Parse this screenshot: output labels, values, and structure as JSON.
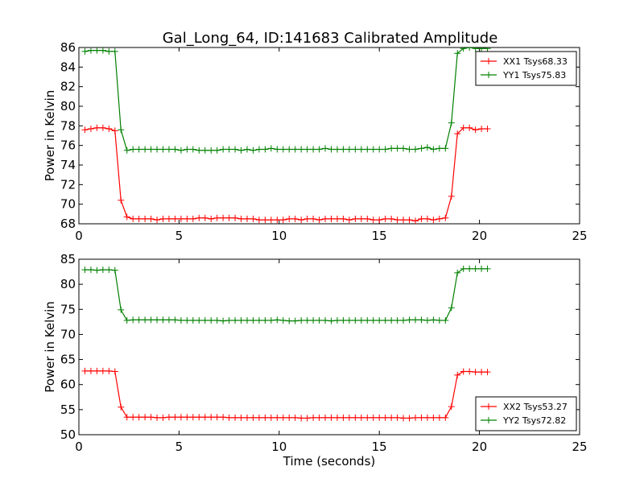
{
  "title": "Gal_Long_64, ID:141683 Calibrated Amplitude",
  "chart_data": [
    {
      "type": "line",
      "xlabel": "",
      "ylabel": "Power in Kelvin",
      "xlim": [
        0,
        25
      ],
      "ylim": [
        68,
        86
      ],
      "xticks": [
        "0",
        "5",
        "10",
        "15",
        "20",
        "25"
      ],
      "yticks": [
        "68",
        "70",
        "72",
        "74",
        "76",
        "78",
        "80",
        "82",
        "84",
        "86"
      ],
      "legend_position": "top-right",
      "series": [
        {
          "name": "XX1 Tsys68.33",
          "color": "#ff0000",
          "x": [
            0.3,
            0.6,
            0.9,
            1.2,
            1.5,
            1.8,
            2.1,
            2.4,
            2.7,
            3.0,
            3.3,
            3.6,
            3.9,
            4.2,
            4.5,
            4.8,
            5.1,
            5.4,
            5.7,
            6.0,
            6.3,
            6.6,
            6.9,
            7.2,
            7.5,
            7.8,
            8.1,
            8.4,
            8.7,
            9.0,
            9.3,
            9.6,
            9.9,
            10.2,
            10.5,
            10.8,
            11.1,
            11.4,
            11.7,
            12.0,
            12.3,
            12.6,
            12.9,
            13.2,
            13.5,
            13.8,
            14.1,
            14.4,
            14.7,
            15.0,
            15.3,
            15.6,
            15.9,
            16.2,
            16.5,
            16.8,
            17.1,
            17.4,
            17.7,
            18.0,
            18.3,
            18.6,
            18.9,
            19.2,
            19.5,
            19.8,
            20.1,
            20.4
          ],
          "y": [
            77.6,
            77.7,
            77.8,
            77.8,
            77.7,
            77.5,
            70.4,
            68.7,
            68.5,
            68.5,
            68.5,
            68.5,
            68.4,
            68.5,
            68.5,
            68.5,
            68.5,
            68.5,
            68.5,
            68.6,
            68.6,
            68.5,
            68.6,
            68.6,
            68.6,
            68.6,
            68.5,
            68.5,
            68.5,
            68.4,
            68.4,
            68.4,
            68.4,
            68.4,
            68.5,
            68.5,
            68.4,
            68.5,
            68.5,
            68.4,
            68.5,
            68.5,
            68.5,
            68.5,
            68.4,
            68.5,
            68.5,
            68.5,
            68.4,
            68.4,
            68.5,
            68.5,
            68.4,
            68.4,
            68.4,
            68.3,
            68.5,
            68.5,
            68.4,
            68.5,
            68.6,
            70.8,
            77.2,
            77.8,
            77.8,
            77.6,
            77.7,
            77.7
          ]
        },
        {
          "name": "YY1 Tsys75.83",
          "color": "#008000",
          "x": [
            0.3,
            0.6,
            0.9,
            1.2,
            1.5,
            1.8,
            2.1,
            2.4,
            2.7,
            3.0,
            3.3,
            3.6,
            3.9,
            4.2,
            4.5,
            4.8,
            5.1,
            5.4,
            5.7,
            6.0,
            6.3,
            6.6,
            6.9,
            7.2,
            7.5,
            7.8,
            8.1,
            8.4,
            8.7,
            9.0,
            9.3,
            9.6,
            9.9,
            10.2,
            10.5,
            10.8,
            11.1,
            11.4,
            11.7,
            12.0,
            12.3,
            12.6,
            12.9,
            13.2,
            13.5,
            13.8,
            14.1,
            14.4,
            14.7,
            15.0,
            15.3,
            15.6,
            15.9,
            16.2,
            16.5,
            16.8,
            17.1,
            17.4,
            17.7,
            18.0,
            18.3,
            18.6,
            18.9,
            19.2,
            19.5,
            19.8,
            20.1,
            20.4
          ],
          "y": [
            85.6,
            85.7,
            85.7,
            85.7,
            85.6,
            85.6,
            77.6,
            75.5,
            75.6,
            75.6,
            75.6,
            75.6,
            75.6,
            75.6,
            75.6,
            75.6,
            75.5,
            75.6,
            75.6,
            75.5,
            75.5,
            75.5,
            75.5,
            75.6,
            75.6,
            75.6,
            75.5,
            75.6,
            75.5,
            75.6,
            75.6,
            75.7,
            75.6,
            75.6,
            75.6,
            75.6,
            75.6,
            75.6,
            75.6,
            75.6,
            75.7,
            75.6,
            75.6,
            75.6,
            75.6,
            75.6,
            75.6,
            75.6,
            75.6,
            75.6,
            75.6,
            75.7,
            75.7,
            75.7,
            75.6,
            75.6,
            75.7,
            75.8,
            75.6,
            75.7,
            75.7,
            78.3,
            85.4,
            85.9,
            86.0,
            85.9,
            85.9,
            85.9
          ]
        }
      ]
    },
    {
      "type": "line",
      "xlabel": "Time (seconds)",
      "ylabel": "Power in Kelvin",
      "xlim": [
        0,
        25
      ],
      "ylim": [
        50,
        85
      ],
      "xticks": [
        "0",
        "5",
        "10",
        "15",
        "20",
        "25"
      ],
      "yticks": [
        "50",
        "55",
        "60",
        "65",
        "70",
        "75",
        "80",
        "85"
      ],
      "legend_position": "bottom-right",
      "series": [
        {
          "name": "XX2 Tsys53.27",
          "color": "#ff0000",
          "x": [
            0.3,
            0.6,
            0.9,
            1.2,
            1.5,
            1.8,
            2.1,
            2.4,
            2.7,
            3.0,
            3.3,
            3.6,
            3.9,
            4.2,
            4.5,
            4.8,
            5.1,
            5.4,
            5.7,
            6.0,
            6.3,
            6.6,
            6.9,
            7.2,
            7.5,
            7.8,
            8.1,
            8.4,
            8.7,
            9.0,
            9.3,
            9.6,
            9.9,
            10.2,
            10.5,
            10.8,
            11.1,
            11.4,
            11.7,
            12.0,
            12.3,
            12.6,
            12.9,
            13.2,
            13.5,
            13.8,
            14.1,
            14.4,
            14.7,
            15.0,
            15.3,
            15.6,
            15.9,
            16.2,
            16.5,
            16.8,
            17.1,
            17.4,
            17.7,
            18.0,
            18.3,
            18.6,
            18.9,
            19.2,
            19.5,
            19.8,
            20.1,
            20.4
          ],
          "y": [
            62.7,
            62.7,
            62.7,
            62.7,
            62.7,
            62.6,
            55.5,
            53.5,
            53.5,
            53.5,
            53.5,
            53.5,
            53.4,
            53.4,
            53.5,
            53.5,
            53.5,
            53.5,
            53.5,
            53.5,
            53.5,
            53.5,
            53.5,
            53.5,
            53.4,
            53.4,
            53.4,
            53.4,
            53.4,
            53.4,
            53.4,
            53.4,
            53.4,
            53.4,
            53.4,
            53.4,
            53.3,
            53.3,
            53.4,
            53.4,
            53.4,
            53.4,
            53.4,
            53.4,
            53.4,
            53.4,
            53.4,
            53.4,
            53.4,
            53.4,
            53.4,
            53.4,
            53.4,
            53.3,
            53.3,
            53.4,
            53.4,
            53.4,
            53.4,
            53.4,
            53.4,
            55.6,
            61.9,
            62.6,
            62.6,
            62.5,
            62.5,
            62.5
          ]
        },
        {
          "name": "YY2 Tsys72.82",
          "color": "#008000",
          "x": [
            0.3,
            0.6,
            0.9,
            1.2,
            1.5,
            1.8,
            2.1,
            2.4,
            2.7,
            3.0,
            3.3,
            3.6,
            3.9,
            4.2,
            4.5,
            4.8,
            5.1,
            5.4,
            5.7,
            6.0,
            6.3,
            6.6,
            6.9,
            7.2,
            7.5,
            7.8,
            8.1,
            8.4,
            8.7,
            9.0,
            9.3,
            9.6,
            9.9,
            10.2,
            10.5,
            10.8,
            11.1,
            11.4,
            11.7,
            12.0,
            12.3,
            12.6,
            12.9,
            13.2,
            13.5,
            13.8,
            14.1,
            14.4,
            14.7,
            15.0,
            15.3,
            15.6,
            15.9,
            16.2,
            16.5,
            16.8,
            17.1,
            17.4,
            17.7,
            18.0,
            18.3,
            18.6,
            18.9,
            19.2,
            19.5,
            19.8,
            20.1,
            20.4
          ],
          "y": [
            82.9,
            82.9,
            82.8,
            82.9,
            82.9,
            82.8,
            74.9,
            72.8,
            72.9,
            72.9,
            72.9,
            72.9,
            72.9,
            72.9,
            72.9,
            72.9,
            72.8,
            72.8,
            72.8,
            72.8,
            72.8,
            72.8,
            72.8,
            72.7,
            72.8,
            72.8,
            72.8,
            72.8,
            72.8,
            72.8,
            72.8,
            72.8,
            72.9,
            72.8,
            72.7,
            72.7,
            72.8,
            72.8,
            72.8,
            72.8,
            72.8,
            72.7,
            72.8,
            72.8,
            72.8,
            72.8,
            72.8,
            72.8,
            72.8,
            72.8,
            72.8,
            72.8,
            72.8,
            72.8,
            72.9,
            72.9,
            72.9,
            72.8,
            72.9,
            72.8,
            72.8,
            75.3,
            82.3,
            83.1,
            83.1,
            83.1,
            83.1,
            83.1
          ]
        }
      ]
    }
  ]
}
